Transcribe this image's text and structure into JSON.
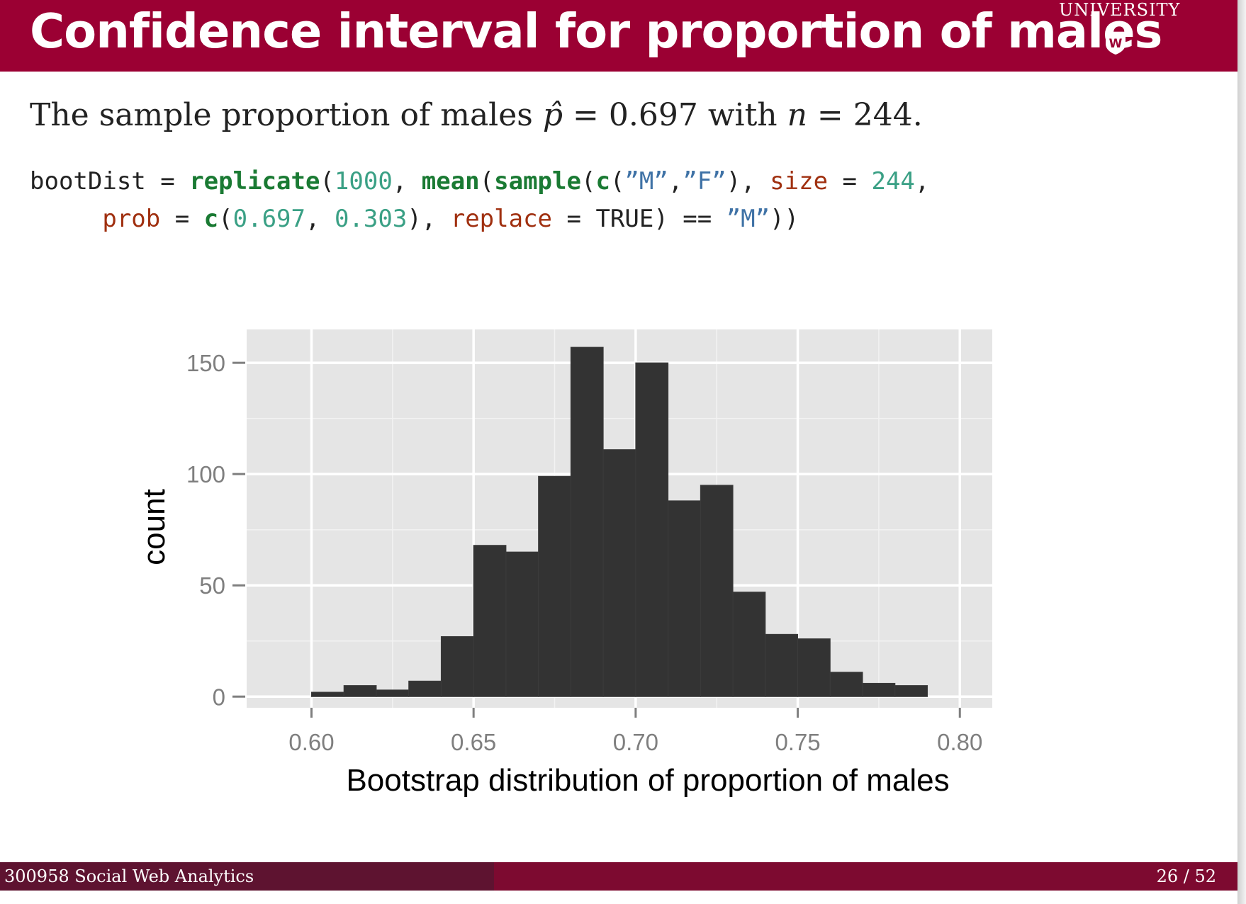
{
  "slide": {
    "title": "Confidence interval for proportion of males",
    "logo_text": "UNIVERSITY",
    "logo_mark": "W",
    "intro": {
      "text_before": "The sample proportion of males ",
      "phat_symbol": "p̂",
      "equals": " = 0.697 ",
      "with_word": "with ",
      "n_symbol": "n",
      "n_equals": " = 244."
    },
    "code": {
      "line1": [
        {
          "t": "bootDist",
          "c": "plain"
        },
        {
          "t": " = ",
          "c": "plain"
        },
        {
          "t": "replicate",
          "c": "fn"
        },
        {
          "t": "(",
          "c": "plain"
        },
        {
          "t": "1000",
          "c": "num"
        },
        {
          "t": ", ",
          "c": "plain"
        },
        {
          "t": "mean",
          "c": "fn"
        },
        {
          "t": "(",
          "c": "plain"
        },
        {
          "t": "sample",
          "c": "fn"
        },
        {
          "t": "(",
          "c": "plain"
        },
        {
          "t": "c",
          "c": "fn"
        },
        {
          "t": "(",
          "c": "plain"
        },
        {
          "t": "”M”",
          "c": "str"
        },
        {
          "t": ",",
          "c": "plain"
        },
        {
          "t": "”F”",
          "c": "str"
        },
        {
          "t": "), ",
          "c": "plain"
        },
        {
          "t": "size",
          "c": "arg"
        },
        {
          "t": " = ",
          "c": "plain"
        },
        {
          "t": "244",
          "c": "num"
        },
        {
          "t": ",",
          "c": "plain"
        }
      ],
      "line2": [
        {
          "t": "     ",
          "c": "plain"
        },
        {
          "t": "prob",
          "c": "arg"
        },
        {
          "t": " = ",
          "c": "plain"
        },
        {
          "t": "c",
          "c": "fn"
        },
        {
          "t": "(",
          "c": "plain"
        },
        {
          "t": "0.697",
          "c": "num"
        },
        {
          "t": ", ",
          "c": "plain"
        },
        {
          "t": "0.303",
          "c": "num"
        },
        {
          "t": "), ",
          "c": "plain"
        },
        {
          "t": "replace",
          "c": "arg"
        },
        {
          "t": " = ",
          "c": "plain"
        },
        {
          "t": "TRUE",
          "c": "plain"
        },
        {
          "t": ") == ",
          "c": "plain"
        },
        {
          "t": "”M”",
          "c": "str"
        },
        {
          "t": "))",
          "c": "plain"
        }
      ]
    },
    "footer": {
      "course": "300958 Social Web Analytics",
      "page": "26 / 52"
    }
  },
  "colors": {
    "title_bar": "#9b0033",
    "footer_left": "#5e1330",
    "footer_right": "#7d0a30",
    "panel_bg": "#e5e5e5",
    "bar_fill": "#333333"
  },
  "chart_data": {
    "type": "bar",
    "title": "",
    "xlabel": "Bootstrap distribution of proportion of males",
    "ylabel": "count",
    "xlim": [
      0.58,
      0.81
    ],
    "ylim": [
      -5,
      165
    ],
    "xticks": [
      "0.60",
      "0.65",
      "0.70",
      "0.75",
      "0.80"
    ],
    "xtick_values": [
      0.6,
      0.65,
      0.7,
      0.75,
      0.8
    ],
    "yticks": [
      "0",
      "50",
      "100",
      "150"
    ],
    "ytick_values": [
      0,
      50,
      100,
      150
    ],
    "bin_width": 0.01,
    "bins": [
      {
        "x0": 0.6,
        "x1": 0.61,
        "count": 2
      },
      {
        "x0": 0.61,
        "x1": 0.62,
        "count": 5
      },
      {
        "x0": 0.62,
        "x1": 0.63,
        "count": 3
      },
      {
        "x0": 0.63,
        "x1": 0.64,
        "count": 7
      },
      {
        "x0": 0.64,
        "x1": 0.65,
        "count": 27
      },
      {
        "x0": 0.65,
        "x1": 0.66,
        "count": 68
      },
      {
        "x0": 0.66,
        "x1": 0.67,
        "count": 65
      },
      {
        "x0": 0.67,
        "x1": 0.68,
        "count": 99
      },
      {
        "x0": 0.68,
        "x1": 0.69,
        "count": 157
      },
      {
        "x0": 0.69,
        "x1": 0.7,
        "count": 111
      },
      {
        "x0": 0.7,
        "x1": 0.71,
        "count": 150
      },
      {
        "x0": 0.71,
        "x1": 0.72,
        "count": 88
      },
      {
        "x0": 0.72,
        "x1": 0.73,
        "count": 95
      },
      {
        "x0": 0.73,
        "x1": 0.74,
        "count": 47
      },
      {
        "x0": 0.74,
        "x1": 0.75,
        "count": 28
      },
      {
        "x0": 0.75,
        "x1": 0.76,
        "count": 26
      },
      {
        "x0": 0.76,
        "x1": 0.77,
        "count": 11
      },
      {
        "x0": 0.77,
        "x1": 0.78,
        "count": 6
      },
      {
        "x0": 0.78,
        "x1": 0.79,
        "count": 5
      }
    ],
    "grid": true
  }
}
